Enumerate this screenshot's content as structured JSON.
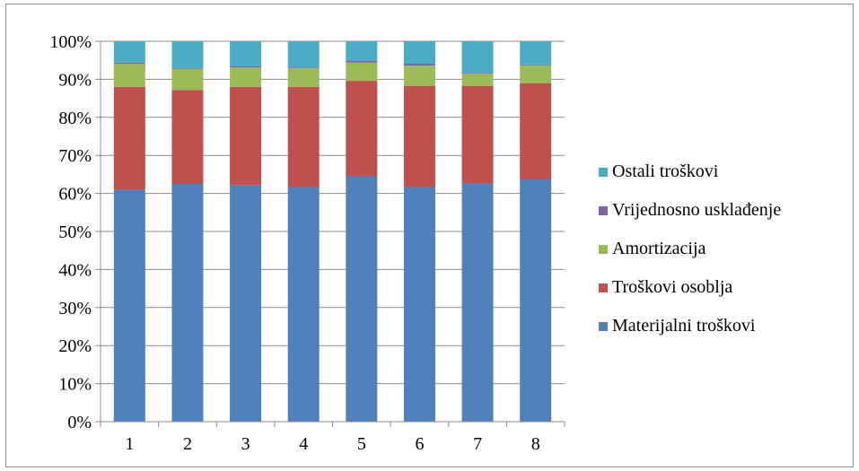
{
  "chart_data": {
    "type": "bar",
    "stacked": true,
    "percent_stacked": true,
    "categories": [
      "1",
      "2",
      "3",
      "4",
      "5",
      "6",
      "7",
      "8"
    ],
    "series": [
      {
        "name": "Materijalni troškovi",
        "color": "#4f81bd",
        "values": [
          61,
          62.5,
          62.2,
          61.8,
          64.5,
          61.8,
          62.6,
          63.8
        ]
      },
      {
        "name": "Troškovi osoblja",
        "color": "#c0504d",
        "values": [
          27,
          24.7,
          25.8,
          26.2,
          25.1,
          26.4,
          25.6,
          25.2
        ]
      },
      {
        "name": "Amortizacija",
        "color": "#9bbb59",
        "values": [
          6.1,
          5.6,
          5.1,
          4.9,
          4.8,
          5.4,
          3.3,
          4.7
        ]
      },
      {
        "name": "Vrijednosno usklađenje",
        "color": "#8064a2",
        "values": [
          0.3,
          0.2,
          0.3,
          0.2,
          0.5,
          0.5,
          0.2,
          0.2
        ]
      },
      {
        "name": "Ostali troškovi",
        "color": "#4bacc6",
        "values": [
          5.6,
          7.0,
          6.6,
          6.9,
          5.1,
          5.9,
          8.3,
          6.1
        ]
      }
    ],
    "y_ticks": [
      "0%",
      "10%",
      "20%",
      "30%",
      "40%",
      "50%",
      "60%",
      "70%",
      "80%",
      "90%",
      "100%"
    ],
    "ylim": [
      0,
      100
    ],
    "grid": true,
    "legend_position": "right",
    "legend_order": [
      "Ostali troškovi",
      "Vrijednosno usklađenje",
      "Amortizacija",
      "Troškovi osoblja",
      "Materijalni troškovi"
    ],
    "title": "",
    "xlabel": "",
    "ylabel": ""
  }
}
